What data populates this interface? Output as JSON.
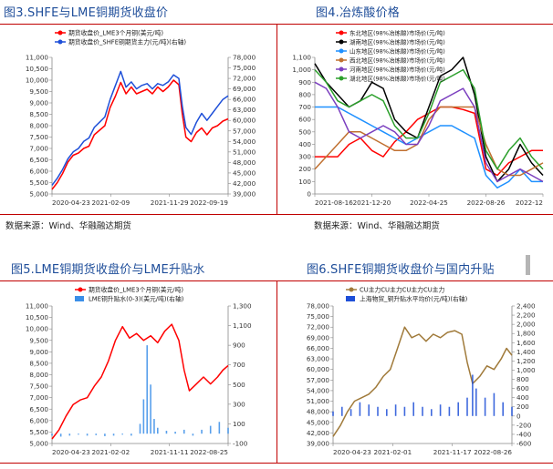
{
  "panels": {
    "p3": {
      "title": "图3.SHFE与LME铜期货收盘价",
      "source": "数据来源：Wind、华融融达期货"
    },
    "p4": {
      "title": "图4.冶炼酸价格",
      "source": "数据来源：Wind、华融融达期货"
    },
    "p5": {
      "title": "图5.LME铜期货收盘价与LME升贴水"
    },
    "p6": {
      "title": "图6.SHFE铜期货收盘价与国内升贴"
    }
  },
  "colors": {
    "title": "#1f4e9a",
    "rule": "#c00000",
    "red": "#ff0000",
    "blue": "#1e4fd8",
    "lightblue": "#3b8fe8",
    "brown": "#a07a3a",
    "axis": "#888888"
  },
  "chart_data": [
    {
      "id": "p3",
      "type": "line",
      "x_ticks": [
        "2020-04-23",
        "2021-02-09",
        "2021-11-29",
        "2022-09-19"
      ],
      "y_left": {
        "ticks": [
          "5,000",
          "5,500",
          "6,000",
          "6,500",
          "7,000",
          "7,500",
          "8,000",
          "8,500",
          "9,000",
          "9,500",
          "10,000",
          "10,500",
          "11,000"
        ],
        "lim": [
          5000,
          11000
        ]
      },
      "y_right": {
        "ticks": [
          "39,000",
          "42,000",
          "45,000",
          "48,000",
          "51,000",
          "54,000",
          "57,000",
          "60,000",
          "63,000",
          "66,000",
          "69,000",
          "72,000",
          "75,000",
          "78,000"
        ],
        "lim": [
          39000,
          78000
        ]
      },
      "legend": [
        "期货收盘价_LME3个月铜(美元/吨)",
        "期货收盘价_SHFE铜期货主力(元/吨)(右轴)"
      ],
      "series": [
        {
          "name": "期货收盘价_LME3个月铜(美元/吨)",
          "color": "#ff0000",
          "axis": "left",
          "x": [
            0,
            0.03,
            0.06,
            0.09,
            0.12,
            0.15,
            0.18,
            0.21,
            0.24,
            0.27,
            0.3,
            0.33,
            0.36,
            0.39,
            0.42,
            0.45,
            0.48,
            0.51,
            0.54,
            0.57,
            0.6,
            0.63,
            0.66,
            0.69,
            0.72,
            0.74,
            0.76,
            0.79,
            0.82,
            0.85,
            0.88,
            0.91,
            0.94,
            0.97,
            1.0
          ],
          "values": [
            5200,
            5500,
            5900,
            6400,
            6700,
            6800,
            7000,
            7100,
            7600,
            7800,
            8000,
            8800,
            9300,
            9900,
            9400,
            9700,
            9400,
            9500,
            9600,
            9400,
            9700,
            9500,
            9700,
            10000,
            9800,
            8500,
            7500,
            7300,
            7700,
            7900,
            7600,
            7900,
            8000,
            8200,
            8300
          ]
        },
        {
          "name": "期货收盘价_SHFE铜期货主力(元/吨)(右轴)",
          "color": "#1e4fd8",
          "axis": "right",
          "x": [
            0,
            0.03,
            0.06,
            0.09,
            0.12,
            0.15,
            0.18,
            0.21,
            0.24,
            0.27,
            0.3,
            0.33,
            0.36,
            0.39,
            0.42,
            0.45,
            0.48,
            0.51,
            0.54,
            0.57,
            0.6,
            0.63,
            0.66,
            0.69,
            0.72,
            0.74,
            0.76,
            0.79,
            0.82,
            0.85,
            0.88,
            0.91,
            0.94,
            0.97,
            1.0
          ],
          "values": [
            41500,
            43500,
            46000,
            49000,
            51000,
            52000,
            54000,
            55000,
            58000,
            59500,
            61000,
            66000,
            70000,
            74000,
            69500,
            71000,
            69000,
            70000,
            70500,
            69000,
            70500,
            70000,
            71000,
            73000,
            72000,
            64000,
            58000,
            56000,
            59500,
            62000,
            60000,
            62000,
            64000,
            66000,
            67000
          ]
        }
      ]
    },
    {
      "id": "p4",
      "type": "line",
      "x_ticks": [
        "2021-08-16",
        "2021-12-20",
        "2022-04-25",
        "2022-08-26",
        "2022-12"
      ],
      "y_left": {
        "ticks": [
          "0",
          "100",
          "200",
          "300",
          "400",
          "500",
          "600",
          "700",
          "800",
          "900",
          "1,000",
          "1,100"
        ],
        "lim": [
          0,
          1100
        ]
      },
      "legend": [
        "东北地区(98%冶炼酸)市场价(元/吨)",
        "湖南地区(98%冶炼酸)市场价(元/吨)",
        "山东地区(98%冶炼酸)市场价(元/吨)",
        "西北地区(98%冶炼酸)市场价(元/吨)",
        "河南地区(98%冶炼酸)市场价(元/吨)",
        "湖北地区(98%冶炼酸)市场价(元/吨)"
      ],
      "series": [
        {
          "name": "东北地区(98%冶炼酸)市场价(元/吨)",
          "color": "#ff0000",
          "x": [
            0,
            0.05,
            0.1,
            0.15,
            0.2,
            0.25,
            0.3,
            0.35,
            0.4,
            0.45,
            0.5,
            0.55,
            0.6,
            0.65,
            0.7,
            0.75,
            0.8,
            0.85,
            0.9,
            0.95,
            1.0
          ],
          "values": [
            300,
            300,
            300,
            400,
            450,
            350,
            300,
            420,
            500,
            600,
            650,
            700,
            700,
            680,
            650,
            200,
            150,
            250,
            300,
            350,
            350
          ]
        },
        {
          "name": "湖南地区(98%冶炼酸)市场价(元/吨)",
          "color": "#000000",
          "x": [
            0,
            0.05,
            0.1,
            0.15,
            0.2,
            0.25,
            0.3,
            0.35,
            0.4,
            0.45,
            0.5,
            0.55,
            0.6,
            0.65,
            0.7,
            0.75,
            0.8,
            0.85,
            0.9,
            0.95,
            1.0
          ],
          "values": [
            1050,
            900,
            800,
            700,
            750,
            900,
            850,
            600,
            500,
            450,
            700,
            950,
            1000,
            1100,
            800,
            300,
            100,
            200,
            400,
            250,
            150
          ]
        },
        {
          "name": "山东地区(98%冶炼酸)市场价(元/吨)",
          "color": "#1e90ff",
          "x": [
            0,
            0.05,
            0.1,
            0.15,
            0.2,
            0.25,
            0.3,
            0.35,
            0.4,
            0.45,
            0.5,
            0.55,
            0.6,
            0.65,
            0.7,
            0.75,
            0.8,
            0.85,
            0.9,
            0.95,
            1.0
          ],
          "values": [
            700,
            700,
            700,
            650,
            600,
            550,
            500,
            450,
            400,
            450,
            500,
            550,
            550,
            500,
            450,
            150,
            50,
            100,
            200,
            100,
            100
          ]
        },
        {
          "name": "西北地区(98%冶炼酸)市场价(元/吨)",
          "color": "#c07030",
          "x": [
            0,
            0.05,
            0.1,
            0.15,
            0.2,
            0.25,
            0.3,
            0.35,
            0.4,
            0.45,
            0.5,
            0.55,
            0.6,
            0.65,
            0.7,
            0.75,
            0.8,
            0.85,
            0.9,
            0.95,
            1.0
          ],
          "values": [
            200,
            300,
            400,
            500,
            500,
            450,
            400,
            350,
            350,
            400,
            600,
            700,
            700,
            700,
            700,
            400,
            200,
            150,
            150,
            200,
            250
          ]
        },
        {
          "name": "河南地区(98%冶炼酸)市场价(元/吨)",
          "color": "#7b3fbf",
          "x": [
            0,
            0.05,
            0.1,
            0.15,
            0.2,
            0.25,
            0.3,
            0.35,
            0.4,
            0.45,
            0.5,
            0.55,
            0.6,
            0.65,
            0.7,
            0.75,
            0.8,
            0.85,
            0.9,
            0.95,
            1.0
          ],
          "values": [
            900,
            850,
            700,
            500,
            450,
            500,
            550,
            500,
            400,
            400,
            550,
            750,
            800,
            850,
            700,
            250,
            100,
            150,
            200,
            150,
            100
          ]
        },
        {
          "name": "湖北地区(98%冶炼酸)市场价(元/吨)",
          "color": "#2ca02c",
          "x": [
            0,
            0.05,
            0.1,
            0.15,
            0.2,
            0.25,
            0.3,
            0.35,
            0.4,
            0.45,
            0.5,
            0.55,
            0.6,
            0.65,
            0.7,
            0.75,
            0.8,
            0.85,
            0.9,
            0.95,
            1.0
          ],
          "values": [
            1000,
            900,
            750,
            700,
            750,
            800,
            750,
            550,
            450,
            450,
            650,
            900,
            950,
            1000,
            850,
            350,
            200,
            350,
            450,
            300,
            200
          ]
        }
      ]
    },
    {
      "id": "p5",
      "type": "line",
      "x_ticks": [
        "2020-04-23",
        "2021-02-02",
        "2021-11-11",
        "2022-08-25"
      ],
      "y_left": {
        "ticks": [
          "5,000",
          "5,500",
          "6,000",
          "6,500",
          "7,000",
          "7,500",
          "8,000",
          "8,500",
          "9,000",
          "9,500",
          "10,000",
          "10,500",
          "11,000"
        ],
        "lim": [
          5000,
          11000
        ]
      },
      "y_right": {
        "ticks": [
          "-100",
          "100",
          "300",
          "500",
          "700",
          "900",
          "1,100",
          "1,300"
        ],
        "lim": [
          -100,
          1300
        ]
      },
      "legend": [
        "期货收盘价_LME3个月铜(美元/吨)",
        "LME铜升贴水(0-3)(美元/吨)(右轴)"
      ],
      "series": [
        {
          "name": "期货收盘价_LME3个月铜(美元/吨)",
          "color": "#ff0000",
          "axis": "left",
          "x": [
            0,
            0.04,
            0.08,
            0.12,
            0.16,
            0.2,
            0.24,
            0.28,
            0.32,
            0.36,
            0.4,
            0.44,
            0.48,
            0.52,
            0.56,
            0.6,
            0.64,
            0.68,
            0.72,
            0.75,
            0.78,
            0.82,
            0.86,
            0.9,
            0.94,
            0.97,
            1.0
          ],
          "values": [
            5200,
            5600,
            6200,
            6700,
            6900,
            7000,
            7500,
            7900,
            8600,
            9500,
            10100,
            9600,
            9800,
            9500,
            9700,
            9400,
            9900,
            10200,
            9500,
            8200,
            7300,
            7600,
            7900,
            7600,
            7900,
            8200,
            8400
          ]
        },
        {
          "name": "LME铜升贴水(0-3)(美元/吨)(右轴)",
          "color": "#3b8fe8",
          "axis": "right",
          "kind": "bar",
          "x": [
            0,
            0.05,
            0.1,
            0.15,
            0.2,
            0.25,
            0.3,
            0.35,
            0.4,
            0.45,
            0.5,
            0.52,
            0.54,
            0.56,
            0.58,
            0.6,
            0.65,
            0.7,
            0.75,
            0.8,
            0.85,
            0.9,
            0.95,
            1.0
          ],
          "values": [
            -20,
            -30,
            -20,
            -10,
            -20,
            -15,
            -25,
            -20,
            -10,
            -20,
            100,
            350,
            900,
            500,
            150,
            60,
            30,
            20,
            40,
            -20,
            40,
            80,
            120,
            60
          ]
        }
      ]
    },
    {
      "id": "p6",
      "type": "line",
      "x_ticks": [
        "2020-04-23",
        "2021-02-01",
        "2021-11-17",
        "2022-08-26"
      ],
      "y_left": {
        "ticks": [
          "39,000",
          "42,000",
          "45,000",
          "48,000",
          "51,000",
          "54,000",
          "57,000",
          "60,000",
          "63,000",
          "66,000",
          "69,000",
          "72,000",
          "75,000",
          "78,000"
        ],
        "lim": [
          39000,
          78000
        ]
      },
      "y_right": {
        "ticks": [
          "-600",
          "-400",
          "-200",
          "0",
          "200",
          "400",
          "600",
          "800",
          "1,000",
          "1,200",
          "1,400",
          "1,600",
          "1,800",
          "2,000",
          "2,200",
          "2,400"
        ],
        "lim": [
          -600,
          2400
        ]
      },
      "legend": [
        "CU主力CU主力CU主力CU主力",
        "上海物贸_铜升贴水平均价(元/吨)(右轴)"
      ],
      "series": [
        {
          "name": "CU主力CU主力CU主力CU主力",
          "color": "#a07a3a",
          "axis": "left",
          "x": [
            0,
            0.04,
            0.08,
            0.12,
            0.16,
            0.2,
            0.24,
            0.28,
            0.32,
            0.36,
            0.4,
            0.44,
            0.48,
            0.52,
            0.56,
            0.6,
            0.64,
            0.68,
            0.72,
            0.75,
            0.78,
            0.82,
            0.86,
            0.9,
            0.94,
            0.97,
            1.0
          ],
          "values": [
            41000,
            44000,
            48000,
            51000,
            52000,
            53000,
            55000,
            58000,
            60000,
            66000,
            72000,
            69000,
            70000,
            68000,
            70000,
            69000,
            70500,
            71000,
            70000,
            62000,
            56000,
            58000,
            61000,
            60000,
            63000,
            66000,
            64000
          ]
        },
        {
          "name": "上海物贸_铜升贴水平均价(元/吨)(右轴)",
          "color": "#1e4fd8",
          "axis": "right",
          "kind": "bar",
          "x": [
            0,
            0.05,
            0.1,
            0.15,
            0.2,
            0.25,
            0.3,
            0.35,
            0.4,
            0.45,
            0.5,
            0.55,
            0.6,
            0.65,
            0.7,
            0.75,
            0.78,
            0.8,
            0.85,
            0.9,
            0.95,
            1.0
          ],
          "values": [
            100,
            200,
            150,
            300,
            250,
            200,
            150,
            250,
            200,
            300,
            200,
            150,
            250,
            200,
            300,
            400,
            900,
            600,
            400,
            500,
            300,
            200
          ]
        }
      ]
    }
  ]
}
